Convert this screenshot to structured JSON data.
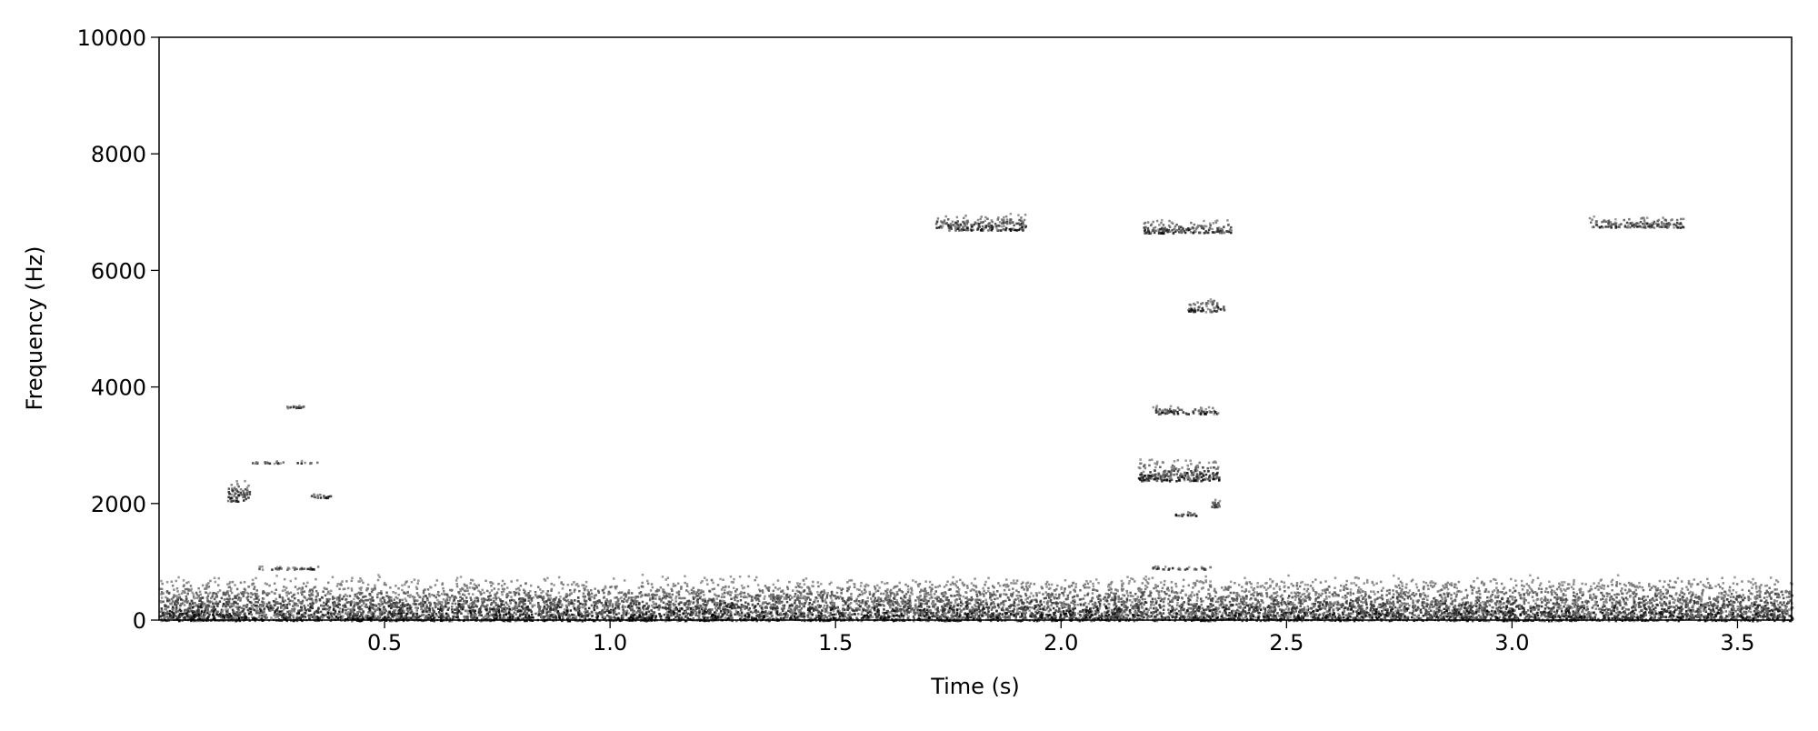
{
  "chart_data": {
    "type": "spectrogram",
    "x_label": "Time (s)",
    "y_label": "Frequency (Hz)",
    "xlim": [
      0,
      3.62
    ],
    "ylim": [
      0,
      10000
    ],
    "xticks": [
      0.5,
      {
        "value": 1.0,
        "label": "1.0"
      },
      1.5,
      {
        "value": 2.0,
        "label": "2.0"
      },
      2.5,
      {
        "value": 3.0,
        "label": "3.0"
      },
      3.5
    ],
    "yticks": [
      0,
      2000,
      4000,
      6000,
      8000,
      10000
    ],
    "color": "#000000",
    "events": [
      {
        "x": [
          0,
          3.62
        ],
        "y": [
          0,
          800
        ]
      },
      {
        "x": [
          0.15,
          0.2
        ],
        "y": [
          2050,
          2450
        ]
      },
      {
        "x": [
          0.2,
          0.35
        ],
        "y": [
          2700,
          2750
        ]
      },
      {
        "x": [
          0.28,
          0.32
        ],
        "y": [
          3650,
          3700
        ]
      },
      {
        "x": [
          0.33,
          0.38
        ],
        "y": [
          2100,
          2200
        ]
      },
      {
        "x": [
          0.22,
          0.36
        ],
        "y": [
          880,
          950
        ]
      },
      {
        "x": [
          1.72,
          1.92
        ],
        "y": [
          6700,
          7000
        ]
      },
      {
        "x": [
          2.18,
          2.38
        ],
        "y": [
          6650,
          6900
        ]
      },
      {
        "x": [
          2.28,
          2.36
        ],
        "y": [
          5300,
          5550
        ]
      },
      {
        "x": [
          2.2,
          2.35
        ],
        "y": [
          3550,
          3700
        ]
      },
      {
        "x": [
          2.17,
          2.35
        ],
        "y": [
          2400,
          2800
        ]
      },
      {
        "x": [
          2.25,
          2.3
        ],
        "y": [
          1800,
          1900
        ]
      },
      {
        "x": [
          2.33,
          2.35
        ],
        "y": [
          1950,
          2100
        ]
      },
      {
        "x": [
          2.2,
          2.33
        ],
        "y": [
          880,
          950
        ]
      },
      {
        "x": [
          3.17,
          3.38
        ],
        "y": [
          6750,
          6950
        ]
      }
    ]
  }
}
